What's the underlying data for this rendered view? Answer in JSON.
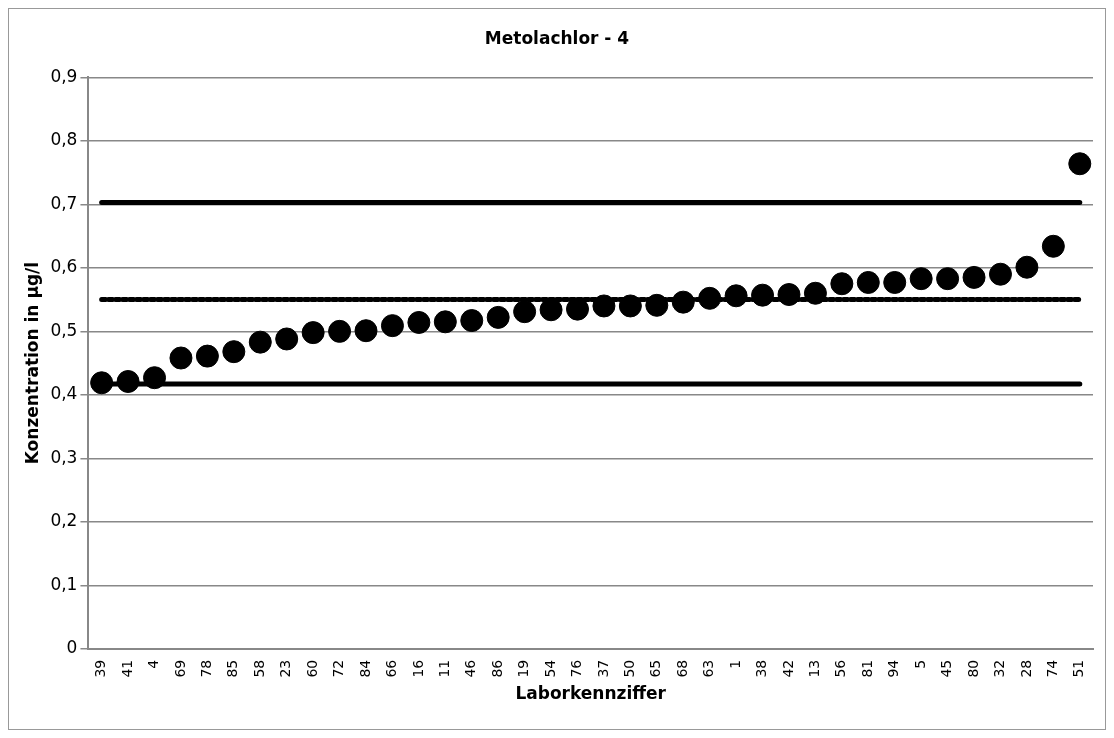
{
  "chart_data": {
    "type": "scatter",
    "title": "Metolachlor - 4",
    "xlabel": "Laborkennziffer",
    "ylabel": "Konzentration in µg/l",
    "categories": [
      "39",
      "41",
      "4",
      "69",
      "78",
      "85",
      "58",
      "23",
      "60",
      "72",
      "84",
      "66",
      "16",
      "11",
      "46",
      "86",
      "19",
      "54",
      "76",
      "37",
      "50",
      "65",
      "68",
      "63",
      "1",
      "38",
      "42",
      "13",
      "56",
      "81",
      "94",
      "5",
      "45",
      "80",
      "32",
      "28",
      "74",
      "51"
    ],
    "series": [
      {
        "color": "#000000",
        "values": [
          0.419,
          0.421,
          0.427,
          0.458,
          0.461,
          0.468,
          0.483,
          0.488,
          0.498,
          0.5,
          0.501,
          0.509,
          0.514,
          0.515,
          0.517,
          0.522,
          0.531,
          0.534,
          0.535,
          0.54,
          0.54,
          0.541,
          0.546,
          0.552,
          0.556,
          0.557,
          0.558,
          0.56,
          0.575,
          0.577,
          0.577,
          0.583,
          0.583,
          0.585,
          0.59,
          0.601,
          0.634,
          0.764
        ]
      }
    ],
    "ref_lines": [
      {
        "axis": "y",
        "value": 0.703,
        "color": "#000000",
        "line_style": "solid"
      },
      {
        "axis": "y",
        "value": 0.55,
        "color": "#000000",
        "line_style": "dotted"
      },
      {
        "axis": "y",
        "value": 0.417,
        "color": "#000000",
        "line_style": "solid"
      }
    ],
    "ylim": [
      0,
      0.9
    ],
    "yticks": [
      {
        "value": 0,
        "label": "0"
      },
      {
        "value": 0.1,
        "label": "0,1"
      },
      {
        "value": 0.2,
        "label": "0,2"
      },
      {
        "value": 0.3,
        "label": "0,3"
      },
      {
        "value": 0.4,
        "label": "0,4"
      },
      {
        "value": 0.5,
        "label": "0,5"
      },
      {
        "value": 0.6,
        "label": "0,6"
      },
      {
        "value": 0.7,
        "label": "0,7"
      },
      {
        "value": 0.8,
        "label": "0,8"
      },
      {
        "value": 0.9,
        "label": "0,9"
      }
    ],
    "grid": "y",
    "marker": "circle",
    "legend": false
  }
}
